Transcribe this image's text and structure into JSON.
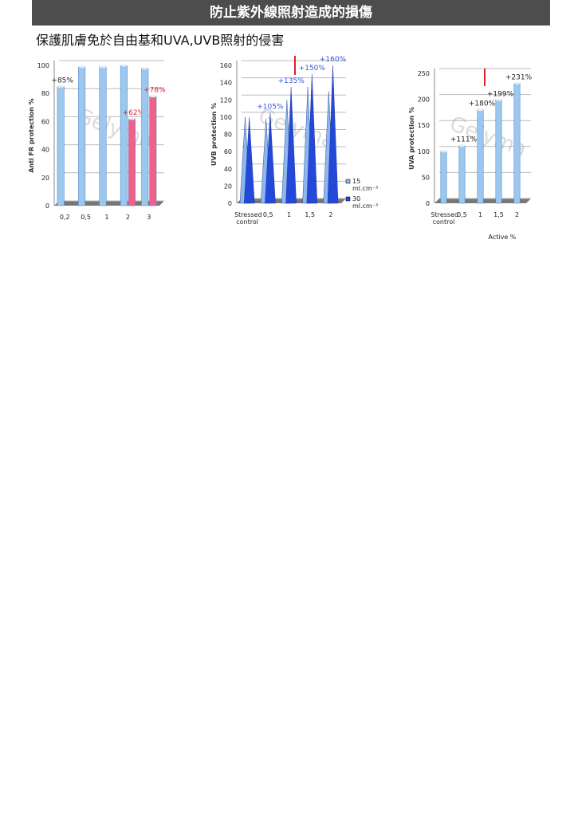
{
  "header": {
    "title": "防止紫外線照射造成的損傷",
    "subtitle": "保護肌膚免於自由基和UVA,UVB照射的侵害"
  },
  "chart_data": [
    {
      "type": "bar",
      "ylabel": "Anti FR protection %",
      "watermark": "Gelyma",
      "categories": [
        "0,2",
        "0,5",
        "1",
        "2",
        "3"
      ],
      "series": [
        {
          "color": "#9cc8ef",
          "label_color": "#222222",
          "values": [
            85,
            99,
            99,
            100,
            98
          ],
          "value_labels": [
            "+85%",
            null,
            null,
            null,
            null
          ]
        },
        {
          "color": "#f0608a",
          "label_color": "#e0203a",
          "values": [
            null,
            null,
            null,
            62,
            78
          ],
          "value_labels": [
            null,
            null,
            null,
            "+62%",
            "+78%"
          ]
        }
      ],
      "ylim": [
        0,
        100
      ],
      "yticks": [
        0,
        20,
        40,
        60,
        80,
        100
      ],
      "grid": true
    },
    {
      "type": "cone",
      "ylabel": "UVB protection %",
      "watermark": "Gelyma",
      "categories": [
        "Stressed control",
        "0,5",
        "1",
        "1,5",
        "2"
      ],
      "series": [
        {
          "name": "15 ml.cm⁻³",
          "color": "#8db8ee",
          "label_color": "#3355dd",
          "values": [
            100,
            98,
            120,
            135,
            130
          ],
          "value_labels": [
            null,
            null,
            null,
            null,
            null
          ]
        },
        {
          "name": "30 ml.cm⁻³",
          "color": "#2448d8",
          "label_color": "#3355dd",
          "values": [
            100,
            105,
            135,
            150,
            160
          ],
          "value_labels": [
            null,
            "+105%",
            "+135%",
            "+150%",
            "+160%"
          ]
        }
      ],
      "ylim": [
        0,
        160
      ],
      "yticks": [
        0,
        20,
        40,
        60,
        80,
        100,
        120,
        140,
        160
      ],
      "grid": true,
      "legend": "right"
    },
    {
      "type": "bar",
      "ylabel": "UVA protection %",
      "xlabel": "Active %",
      "watermark": "Gelyma",
      "categories": [
        "Stressed control",
        "0,5",
        "1",
        "1,5",
        "2"
      ],
      "series": [
        {
          "color": "#9cc8ef",
          "label_color": "#222222",
          "values": [
            100,
            111,
            180,
            199,
            231
          ],
          "value_labels": [
            null,
            "+111%",
            "+180%",
            "+199%",
            "+231%"
          ]
        }
      ],
      "ylim": [
        0,
        250
      ],
      "yticks": [
        0,
        50,
        100,
        150,
        200,
        250
      ],
      "grid": true
    }
  ]
}
